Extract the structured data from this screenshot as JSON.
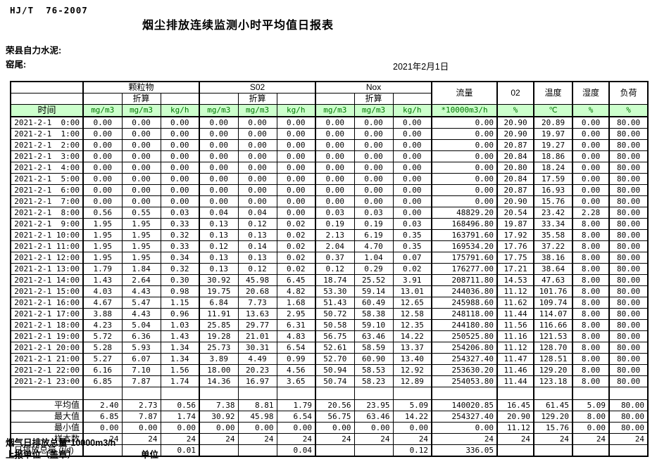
{
  "page": {
    "standard": "HJ/T  76-2007",
    "title": "烟尘排放连续监测小时平均值日报表",
    "company": "荣县自力水泥:",
    "site": "窑尾:",
    "date": "2021年2月1日"
  },
  "colors": {
    "header_bg": "#ccffcc",
    "header_unit_text": "#007700",
    "border": "#000000"
  },
  "table": {
    "time_header": "时间",
    "group_labels": [
      "颗粒物",
      "S02",
      "Nox"
    ],
    "converted_label": "折算",
    "single_headers": [
      "流量",
      "02",
      "温度",
      "湿度",
      "负荷"
    ],
    "unit_labels": [
      "mg/m3",
      "mg/m3",
      "kg/h",
      "mg/m3",
      "mg/m3",
      "kg/h",
      "mg/m3",
      "mg/m3",
      "kg/h",
      "*10000m3/h",
      "%",
      "℃",
      "%",
      "%"
    ],
    "rows": [
      [
        "2021-2-1  0:00",
        "0.00",
        "0.00",
        "0.00",
        "0.00",
        "0.00",
        "0.00",
        "0.00",
        "0.00",
        "0.00",
        "0.00",
        "20.90",
        "20.89",
        "0.00",
        "80.00"
      ],
      [
        "2021-2-1  1:00",
        "0.00",
        "0.00",
        "0.00",
        "0.00",
        "0.00",
        "0.00",
        "0.00",
        "0.00",
        "0.00",
        "0.00",
        "20.90",
        "19.97",
        "0.00",
        "80.00"
      ],
      [
        "2021-2-1  2:00",
        "0.00",
        "0.00",
        "0.00",
        "0.00",
        "0.00",
        "0.00",
        "0.00",
        "0.00",
        "0.00",
        "0.00",
        "20.87",
        "19.27",
        "0.00",
        "80.00"
      ],
      [
        "2021-2-1  3:00",
        "0.00",
        "0.00",
        "0.00",
        "0.00",
        "0.00",
        "0.00",
        "0.00",
        "0.00",
        "0.00",
        "0.00",
        "20.84",
        "18.86",
        "0.00",
        "80.00"
      ],
      [
        "2021-2-1  4:00",
        "0.00",
        "0.00",
        "0.00",
        "0.00",
        "0.00",
        "0.00",
        "0.00",
        "0.00",
        "0.00",
        "0.00",
        "20.80",
        "18.24",
        "0.00",
        "80.00"
      ],
      [
        "2021-2-1  5:00",
        "0.00",
        "0.00",
        "0.00",
        "0.00",
        "0.00",
        "0.00",
        "0.00",
        "0.00",
        "0.00",
        "0.00",
        "20.84",
        "17.59",
        "0.00",
        "80.00"
      ],
      [
        "2021-2-1  6:00",
        "0.00",
        "0.00",
        "0.00",
        "0.00",
        "0.00",
        "0.00",
        "0.00",
        "0.00",
        "0.00",
        "0.00",
        "20.87",
        "16.93",
        "0.00",
        "80.00"
      ],
      [
        "2021-2-1  7:00",
        "0.00",
        "0.00",
        "0.00",
        "0.00",
        "0.00",
        "0.00",
        "0.00",
        "0.00",
        "0.00",
        "0.00",
        "20.90",
        "15.76",
        "0.00",
        "80.00"
      ],
      [
        "2021-2-1  8:00",
        "0.56",
        "0.55",
        "0.03",
        "0.04",
        "0.04",
        "0.00",
        "0.03",
        "0.03",
        "0.00",
        "48829.20",
        "20.54",
        "23.42",
        "2.28",
        "80.00"
      ],
      [
        "2021-2-1  9:00",
        "1.95",
        "1.95",
        "0.33",
        "0.13",
        "0.12",
        "0.02",
        "0.19",
        "0.19",
        "0.03",
        "168496.80",
        "19.87",
        "33.34",
        "8.00",
        "80.00"
      ],
      [
        "2021-2-1 10:00",
        "1.95",
        "1.95",
        "0.32",
        "0.13",
        "0.13",
        "0.02",
        "2.13",
        "6.19",
        "0.35",
        "163791.60",
        "17.92",
        "35.58",
        "8.00",
        "80.00"
      ],
      [
        "2021-2-1 11:00",
        "1.95",
        "1.95",
        "0.33",
        "0.12",
        "0.14",
        "0.02",
        "2.04",
        "4.70",
        "0.35",
        "169534.20",
        "17.76",
        "37.22",
        "8.00",
        "80.00"
      ],
      [
        "2021-2-1 12:00",
        "1.95",
        "1.95",
        "0.34",
        "0.13",
        "0.13",
        "0.02",
        "0.37",
        "1.04",
        "0.07",
        "175791.60",
        "17.75",
        "38.16",
        "8.00",
        "80.00"
      ],
      [
        "2021-2-1 13:00",
        "1.79",
        "1.84",
        "0.32",
        "0.13",
        "0.12",
        "0.02",
        "0.12",
        "0.29",
        "0.02",
        "176277.00",
        "17.21",
        "38.64",
        "8.00",
        "80.00"
      ],
      [
        "2021-2-1 14:00",
        "1.43",
        "2.64",
        "0.30",
        "30.92",
        "45.98",
        "6.45",
        "18.74",
        "25.52",
        "3.91",
        "208711.80",
        "14.53",
        "47.63",
        "8.00",
        "80.00"
      ],
      [
        "2021-2-1 15:00",
        "4.03",
        "4.43",
        "0.98",
        "19.75",
        "20.68",
        "4.82",
        "53.30",
        "59.14",
        "13.01",
        "244036.80",
        "11.12",
        "101.76",
        "8.00",
        "80.00"
      ],
      [
        "2021-2-1 16:00",
        "4.67",
        "5.47",
        "1.15",
        "6.84",
        "7.73",
        "1.68",
        "51.43",
        "60.49",
        "12.65",
        "245988.60",
        "11.62",
        "109.74",
        "8.00",
        "80.00"
      ],
      [
        "2021-2-1 17:00",
        "3.88",
        "4.43",
        "0.96",
        "11.91",
        "13.63",
        "2.95",
        "50.72",
        "58.38",
        "12.58",
        "248118.00",
        "11.44",
        "114.07",
        "8.00",
        "80.00"
      ],
      [
        "2021-2-1 18:00",
        "4.23",
        "5.04",
        "1.03",
        "25.85",
        "29.77",
        "6.31",
        "50.58",
        "59.10",
        "12.35",
        "244180.80",
        "11.56",
        "116.66",
        "8.00",
        "80.00"
      ],
      [
        "2021-2-1 19:00",
        "5.72",
        "6.36",
        "1.43",
        "19.28",
        "21.01",
        "4.83",
        "56.75",
        "63.46",
        "14.22",
        "250525.80",
        "11.16",
        "121.53",
        "8.00",
        "80.00"
      ],
      [
        "2021-2-1 20:00",
        "5.28",
        "5.93",
        "1.34",
        "25.73",
        "30.31",
        "6.54",
        "52.61",
        "58.59",
        "13.37",
        "254206.80",
        "11.12",
        "128.70",
        "8.00",
        "80.00"
      ],
      [
        "2021-2-1 21:00",
        "5.27",
        "6.07",
        "1.34",
        "3.89",
        "4.49",
        "0.99",
        "52.70",
        "60.90",
        "13.40",
        "254327.40",
        "11.47",
        "128.51",
        "8.00",
        "80.00"
      ],
      [
        "2021-2-1 22:00",
        "6.16",
        "7.10",
        "1.56",
        "18.00",
        "20.23",
        "4.56",
        "50.94",
        "58.53",
        "12.92",
        "253630.20",
        "11.46",
        "129.20",
        "8.00",
        "80.00"
      ],
      [
        "2021-2-1 23:00",
        "6.85",
        "7.87",
        "1.74",
        "14.36",
        "16.97",
        "3.65",
        "50.74",
        "58.23",
        "12.89",
        "254053.80",
        "11.44",
        "123.18",
        "8.00",
        "80.00"
      ]
    ],
    "summary_rows": [
      [
        "平均值",
        "2.40",
        "2.73",
        "0.56",
        "7.38",
        "8.81",
        "1.79",
        "20.56",
        "23.95",
        "5.09",
        "140020.85",
        "16.45",
        "61.45",
        "5.09",
        "80.00"
      ],
      [
        "最大值",
        "6.85",
        "7.87",
        "1.74",
        "30.92",
        "45.98",
        "6.54",
        "56.75",
        "63.46",
        "14.22",
        "254327.40",
        "20.90",
        "129.20",
        "8.00",
        "80.00"
      ],
      [
        "最小值",
        "0.00",
        "0.00",
        "0.00",
        "0.00",
        "0.00",
        "0.00",
        "0.00",
        "0.00",
        "0.00",
        "0.00",
        "11.12",
        "15.76",
        "0.00",
        "80.00"
      ],
      [
        "样本数",
        "24",
        "24",
        "24",
        "24",
        "24",
        "24",
        "24",
        "24",
        "24",
        "24",
        "24",
        "24",
        "24",
        "24"
      ],
      [
        "日排放总量 (t/d)",
        "",
        "",
        "0.01",
        "",
        "",
        "0.04",
        "",
        "",
        "0.12",
        "336.05",
        "",
        "",
        "",
        ""
      ]
    ]
  },
  "footer": {
    "flue_total_label": "烟气日排放总量*10000m3/h",
    "report_unit_label": "上报单位（盖章）",
    "unit_label": "单位"
  }
}
